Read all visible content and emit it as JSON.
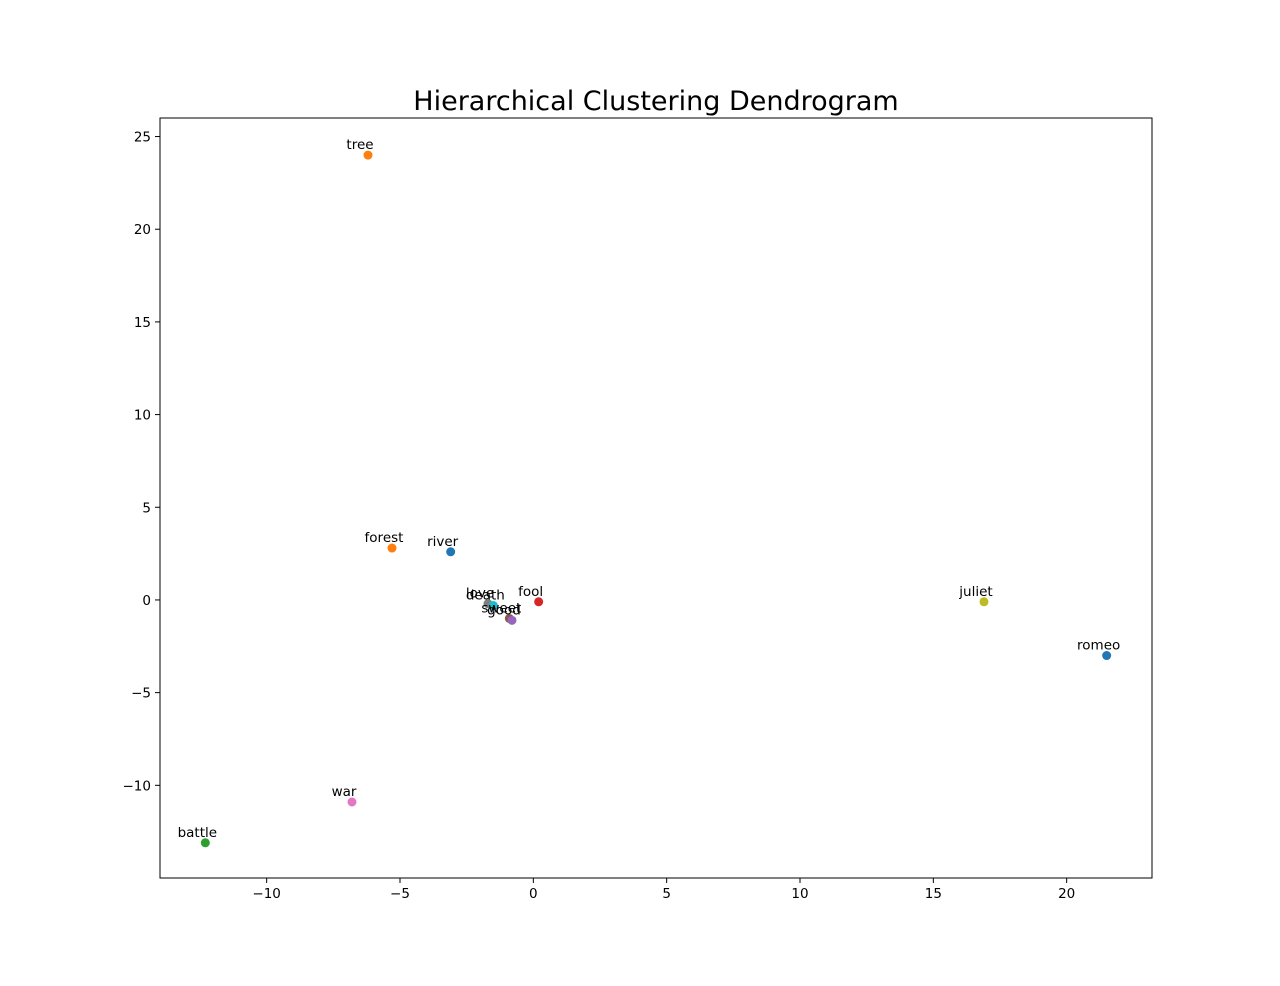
{
  "chart_data": {
    "type": "scatter",
    "title": "Hierarchical Clustering Dendrogram",
    "xlabel": "",
    "ylabel": "",
    "xlim": [
      -14.0,
      23.2
    ],
    "ylim": [
      -15.0,
      26.0
    ],
    "xticks": [
      -10,
      -5,
      0,
      5,
      10,
      15,
      20
    ],
    "yticks": [
      -10,
      -5,
      0,
      5,
      10,
      15,
      20,
      25
    ],
    "grid": false,
    "points": [
      {
        "label": "tree",
        "x": -6.2,
        "y": 24.0,
        "color": "#ff7f0e"
      },
      {
        "label": "forest",
        "x": -5.3,
        "y": 2.8,
        "color": "#ff7f0e"
      },
      {
        "label": "river",
        "x": -3.1,
        "y": 2.6,
        "color": "#1f77b4"
      },
      {
        "label": "love",
        "x": -1.7,
        "y": -0.2,
        "color": "#7f7f7f"
      },
      {
        "label": "death",
        "x": -1.5,
        "y": -0.3,
        "color": "#17becf"
      },
      {
        "label": "fool",
        "x": 0.2,
        "y": -0.1,
        "color": "#d62728"
      },
      {
        "label": "sweet",
        "x": -0.9,
        "y": -1.0,
        "color": "#8c564b"
      },
      {
        "label": "good",
        "x": -0.8,
        "y": -1.1,
        "color": "#9467bd"
      },
      {
        "label": "juliet",
        "x": 16.9,
        "y": -0.1,
        "color": "#bcbd22"
      },
      {
        "label": "romeo",
        "x": 21.5,
        "y": -3.0,
        "color": "#1f77b4"
      },
      {
        "label": "war",
        "x": -6.8,
        "y": -10.9,
        "color": "#e377c2"
      },
      {
        "label": "battle",
        "x": -12.3,
        "y": -13.1,
        "color": "#2ca02c"
      }
    ]
  }
}
